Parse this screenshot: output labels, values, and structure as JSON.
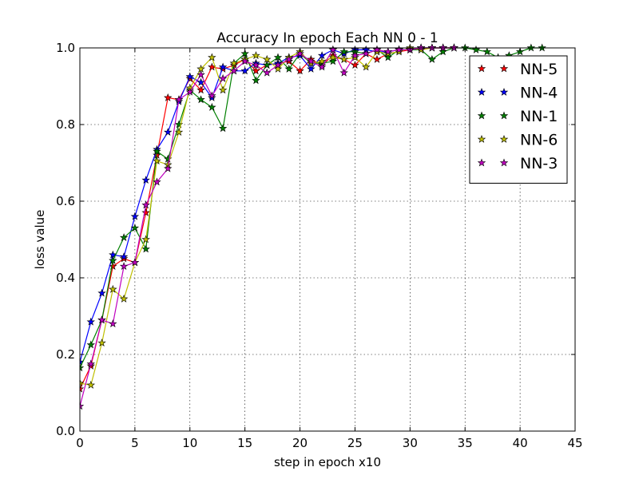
{
  "chart_data": {
    "type": "line",
    "title": "Accuracy In epoch Each NN 0 - 1",
    "xlabel": "step in epoch x10",
    "ylabel": "loss value",
    "xlim": [
      0,
      45
    ],
    "ylim": [
      0,
      1
    ],
    "xticks": [
      0,
      5,
      10,
      15,
      20,
      25,
      30,
      35,
      40,
      45
    ],
    "yticks": [
      0.0,
      0.2,
      0.4,
      0.6,
      0.8,
      1.0
    ],
    "xtick_labels": [
      "0",
      "5",
      "10",
      "15",
      "20",
      "25",
      "30",
      "35",
      "40",
      "45"
    ],
    "ytick_labels": [
      "0.0",
      "0.2",
      "0.4",
      "0.6",
      "0.8",
      "1.0"
    ],
    "grid": true,
    "legend_position": "top-right",
    "marker": "star",
    "series": [
      {
        "name": "NN-5",
        "color": "#ff0000",
        "values": [
          0.11,
          0.17,
          0.29,
          0.43,
          0.45,
          0.44,
          0.57,
          0.72,
          0.87,
          0.865,
          0.92,
          0.89,
          0.95,
          0.945,
          0.955,
          0.97,
          0.94,
          0.955,
          0.96,
          0.965,
          0.94,
          0.97,
          0.955,
          0.98,
          0.97,
          0.955,
          0.985,
          0.97,
          0.985,
          0.99,
          0.995,
          1.0,
          1.0,
          1.0,
          1.0
        ]
      },
      {
        "name": "NN-4",
        "color": "#0000ff",
        "values": [
          0.18,
          0.285,
          0.36,
          0.46,
          0.455,
          0.56,
          0.655,
          0.735,
          0.78,
          0.86,
          0.925,
          0.91,
          0.87,
          0.95,
          0.94,
          0.94,
          0.96,
          0.955,
          0.96,
          0.975,
          0.98,
          0.945,
          0.98,
          0.995,
          0.985,
          0.995,
          0.995,
          0.99,
          0.99,
          0.995,
          0.995,
          1.0,
          1.0,
          1.0,
          1.0
        ]
      },
      {
        "name": "NN-1",
        "color": "#008000",
        "values": [
          0.165,
          0.225,
          0.29,
          0.445,
          0.505,
          0.53,
          0.475,
          0.73,
          0.71,
          0.8,
          0.89,
          0.865,
          0.845,
          0.79,
          0.96,
          0.985,
          0.915,
          0.955,
          0.975,
          0.945,
          0.985,
          0.96,
          0.96,
          0.965,
          0.99,
          0.99,
          0.985,
          0.995,
          0.975,
          0.995,
          0.995,
          0.995,
          0.97,
          0.99,
          1.0,
          1.0,
          0.995,
          0.99,
          0.975,
          0.98,
          0.99,
          1.0,
          1.0
        ]
      },
      {
        "name": "NN-6",
        "color": "#bfbf00",
        "values": [
          0.125,
          0.12,
          0.23,
          0.37,
          0.345,
          0.44,
          0.5,
          0.705,
          0.695,
          0.78,
          0.895,
          0.945,
          0.975,
          0.89,
          0.96,
          0.97,
          0.98,
          0.97,
          0.945,
          0.975,
          0.99,
          0.96,
          0.965,
          0.975,
          0.97,
          0.975,
          0.95,
          0.99,
          0.985,
          0.99,
          1.0,
          0.995,
          1.0,
          1.0,
          1.0
        ]
      },
      {
        "name": "NN-3",
        "color": "#bf00bf",
        "values": [
          0.065,
          0.175,
          0.29,
          0.28,
          0.43,
          0.44,
          0.59,
          0.65,
          0.685,
          0.865,
          0.885,
          0.93,
          0.875,
          0.92,
          0.94,
          0.965,
          0.955,
          0.935,
          0.955,
          0.97,
          0.985,
          0.965,
          0.95,
          0.995,
          0.935,
          0.98,
          0.985,
          0.995,
          0.99,
          0.995,
          0.995,
          1.0,
          1.0,
          1.0,
          1.0
        ]
      }
    ]
  }
}
